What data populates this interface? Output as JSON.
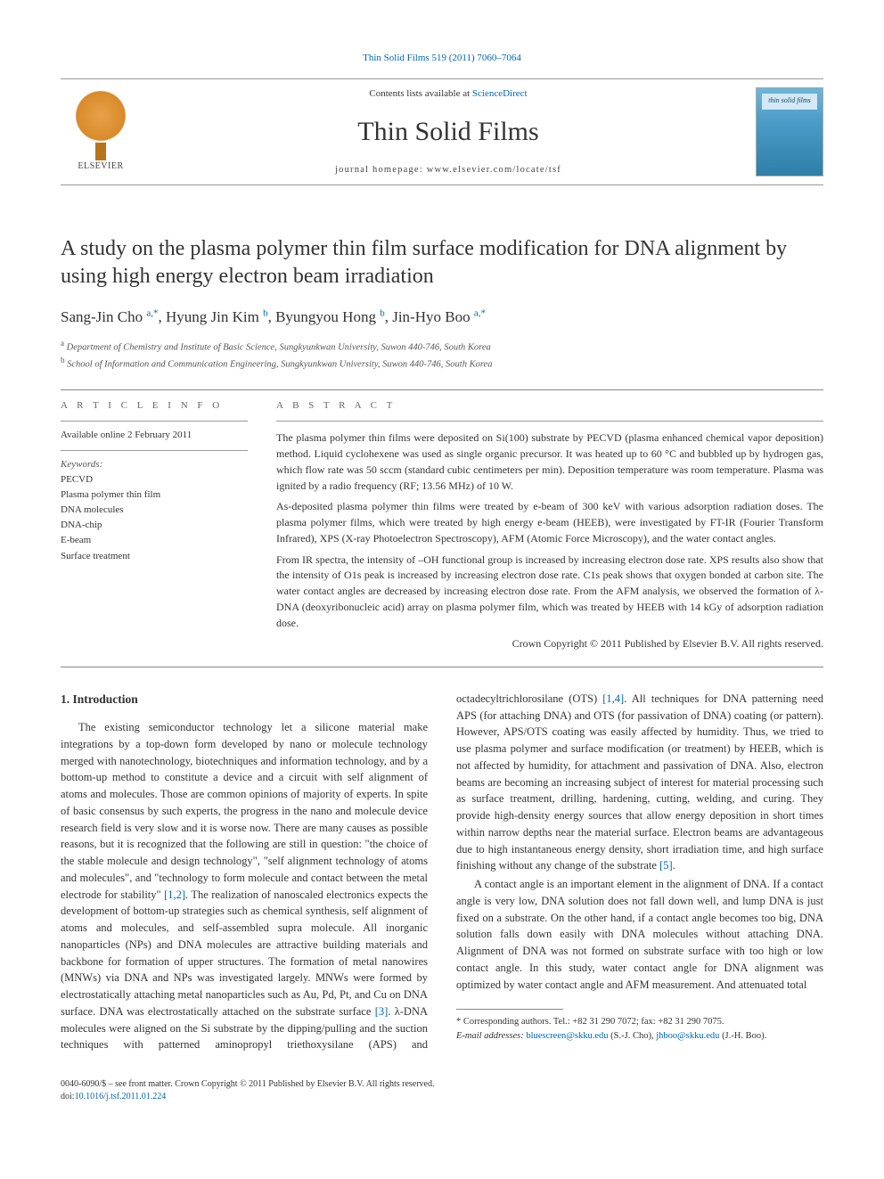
{
  "journal_ref_link": "Thin Solid Films 519 (2011) 7060–7064",
  "header": {
    "publisher_name": "ELSEVIER",
    "contents_prefix": "Contents lists available at ",
    "contents_link": "ScienceDirect",
    "journal_title": "Thin Solid Films",
    "homepage_label": "journal homepage: www.elsevier.com/locate/tsf",
    "cover_label": "thin solid films"
  },
  "article": {
    "title": "A study on the plasma polymer thin film surface modification for DNA alignment by using high energy electron beam irradiation",
    "authors": [
      {
        "name": "Sang-Jin Cho",
        "mark": "a,*"
      },
      {
        "name": "Hyung Jin Kim",
        "mark": "b"
      },
      {
        "name": "Byungyou Hong",
        "mark": "b"
      },
      {
        "name": "Jin-Hyo Boo",
        "mark": "a,*"
      }
    ],
    "affiliations": [
      {
        "mark": "a",
        "text": "Department of Chemistry and Institute of Basic Science, Sungkyunkwan University, Suwon 440-746, South Korea"
      },
      {
        "mark": "b",
        "text": "School of Information and Communication Engineering, Sungkyunkwan University, Suwon 440-746, South Korea"
      }
    ]
  },
  "info": {
    "article_info_label": "A R T I C L E   I N F O",
    "available": "Available online 2 February 2011",
    "keywords_label": "Keywords:",
    "keywords": [
      "PECVD",
      "Plasma polymer thin film",
      "DNA molecules",
      "DNA-chip",
      "E-beam",
      "Surface treatment"
    ]
  },
  "abstract": {
    "label": "A B S T R A C T",
    "paragraphs": [
      "The plasma polymer thin films were deposited on Si(100) substrate by PECVD (plasma enhanced chemical vapor deposition) method. Liquid cyclohexene was used as single organic precursor. It was heated up to 60 °C and bubbled up by hydrogen gas, which flow rate was 50 sccm (standard cubic centimeters per min). Deposition temperature was room temperature. Plasma was ignited by a radio frequency (RF; 13.56 MHz) of 10 W.",
      "As-deposited plasma polymer thin films were treated by e-beam of 300 keV with various adsorption radiation doses. The plasma polymer films, which were treated by high energy e-beam (HEEB), were investigated by FT-IR (Fourier Transform Infrared), XPS (X-ray Photoelectron Spectroscopy), AFM (Atomic Force Microscopy), and the water contact angles.",
      "From IR spectra, the intensity of –OH functional group is increased by increasing electron dose rate. XPS results also show that the intensity of O1s peak is increased by increasing electron dose rate. C1s peak shows that oxygen bonded at carbon site. The water contact angles are decreased by increasing electron dose rate. From the AFM analysis, we observed the formation of λ-DNA (deoxyribonucleic acid) array on plasma polymer film, which was treated by HEEB with 14 kGy of adsorption radiation dose."
    ],
    "copyright": "Crown Copyright © 2011 Published by Elsevier B.V. All rights reserved."
  },
  "body": {
    "section_heading": "1. Introduction",
    "p1_a": "The existing semiconductor technology let a silicone material make integrations by a top-down form developed by nano or molecule technology merged with nanotechnology, biotechniques and information technology, and by a bottom-up method to constitute a device and a circuit with self alignment of atoms and molecules. Those are common opinions of majority of experts. In spite of basic consensus by such experts, the progress in the nano and molecule device research field is very slow and it is worse now. There are many causes as possible reasons, but it is recognized that the following are still in question: \"the choice of the stable molecule and design technology\", \"self alignment technology of atoms and molecules\", and \"technology to form molecule and contact between the metal electrode for stability\" ",
    "cite1": "[1,2]",
    "p1_b": ". The realization of nanoscaled electronics expects the development of bottom-up strategies such as chemical synthesis, self alignment of atoms and molecules, and self-assembled supra molecule. All inorganic nanoparticles (NPs) and DNA molecules are attractive building materials and backbone for formation of upper structures. The formation of metal nanowires (MNWs) via DNA and NPs was investigated largely. MNWs were formed by electrostatically attaching metal nanoparticles such as Au, Pd, Pt, and Cu on DNA surface. DNA was electrostatically attached on the substrate surface ",
    "cite2": "[3]",
    "p1_c": ". λ-DNA molecules were aligned on the Si substrate by the dipping/pulling and the suction techniques with patterned aminopropyl triethoxysilane (APS) and octadecyltrichlorosilane (OTS) ",
    "cite3": "[1,4]",
    "p1_d": ". All techniques for DNA patterning need APS (for attaching DNA) and OTS (for passivation of DNA) coating (or pattern). However, APS/OTS coating was easily affected by humidity. Thus, we tried to use plasma polymer and surface modification (or treatment) by HEEB, which is not affected by humidity, for attachment and passivation of DNA. Also, electron beams are becoming an increasing subject of interest for material processing such as surface treatment, drilling, hardening, cutting, welding, and curing. They provide high-density energy sources that allow energy deposition in short times within narrow depths near the material surface. Electron beams are advantageous due to high instantaneous energy density, short irradiation time, and high surface finishing without any change of the substrate ",
    "cite4": "[5]",
    "p1_e": ".",
    "p2": "A contact angle is an important element in the alignment of DNA. If a contact angle is very low, DNA solution does not fall down well, and lump DNA is just fixed on a substrate. On the other hand, if a contact angle becomes too big, DNA solution falls down easily with DNA molecules without attaching DNA. Alignment of DNA was not formed on substrate surface with too high or low contact angle. In this study, water contact angle for DNA alignment was optimized by water contact angle and AFM measurement. And attenuated total"
  },
  "footnotes": {
    "corr": "* Corresponding authors. Tel.: +82 31 290 7072; fax: +82 31 290 7075.",
    "emails_label": "E-mail addresses: ",
    "email1": "bluescreen@skku.edu",
    "author1": " (S.-J. Cho), ",
    "email2": "jhboo@skku.edu",
    "author2": " (J.-H. Boo)."
  },
  "footer": {
    "line1": "0040-6090/$ – see front matter. Crown Copyright © 2011 Published by Elsevier B.V. All rights reserved.",
    "doi_prefix": "doi:",
    "doi": "10.1016/j.tsf.2011.01.224"
  },
  "colors": {
    "link": "#0066b3",
    "text": "#333333",
    "rule": "#888888"
  }
}
